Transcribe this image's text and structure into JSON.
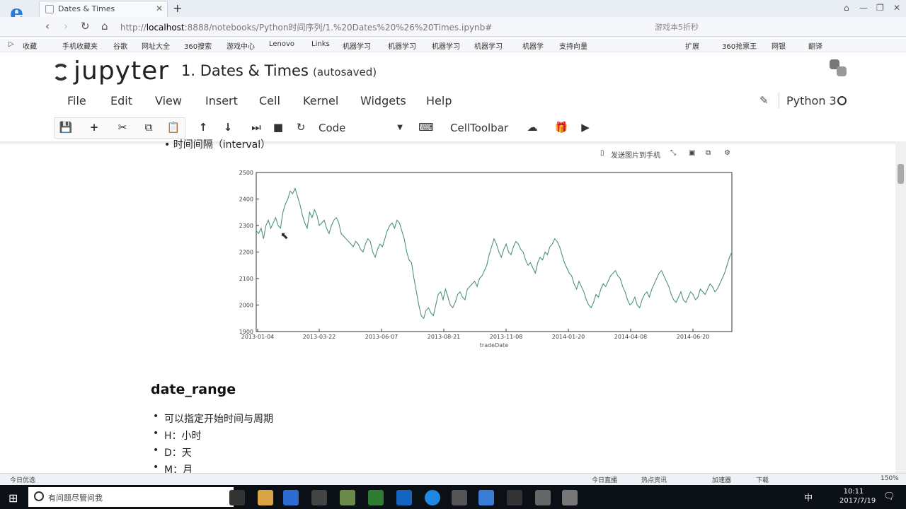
{
  "browser": {
    "tab_title": "Dates & Times",
    "url_prefix": "http://",
    "url_host": "localhost",
    "url_rest": ":8888/notebooks/Python时间序列/1.%20Dates%20%26%20Times.ipynb#",
    "search_hint": "游戏本5折秒",
    "bookmarks": [
      "收藏",
      "手机收藏夹",
      "谷歌",
      "网址大全",
      "360搜索",
      "游戏中心",
      "Lenovo",
      "Links",
      "机器学习",
      "机器学习",
      "机器学习",
      "机器学习",
      "机器学",
      "支持向量"
    ],
    "bookmarks_right": [
      "扩展",
      "360抢票王",
      "网银",
      "翻译"
    ]
  },
  "jupyter": {
    "logo_text": "jupyter",
    "notebook_title": "1. Dates & Times",
    "save_status": "(autosaved)",
    "menu": [
      "File",
      "Edit",
      "View",
      "Insert",
      "Cell",
      "Kernel",
      "Widgets",
      "Help"
    ],
    "kernel_name": "Python 3",
    "cell_type": "Code",
    "cell_toolbar_label": "CellToolbar"
  },
  "content": {
    "interval_line": "时间间隔（interval）",
    "chart_tools_send": "发送图片到手机",
    "heading": "date_range",
    "bullets": [
      "可以指定开始时间与周期",
      "H：小时",
      "D：天",
      "M：月"
    ]
  },
  "chart_data": {
    "type": "line",
    "xlabel": "tradeDate",
    "ylabel": "",
    "ylim": [
      1900,
      2500
    ],
    "yticks": [
      1900,
      2000,
      2100,
      2200,
      2300,
      2400,
      2500
    ],
    "xticks": [
      "2013-01-04",
      "2013-03-22",
      "2013-06-07",
      "2013-08-21",
      "2013-11-08",
      "2014-01-20",
      "2014-04-08",
      "2014-06-20"
    ],
    "line_color": "#4e8f83",
    "series": [
      {
        "values": [
          2280,
          2270,
          2290,
          2250,
          2300,
          2320,
          2290,
          2310,
          2330,
          2300,
          2290,
          2350,
          2380,
          2400,
          2430,
          2420,
          2440,
          2410,
          2380,
          2340,
          2310,
          2290,
          2350,
          2330,
          2360,
          2340,
          2300,
          2310,
          2320,
          2290,
          2270,
          2300,
          2320,
          2330,
          2310,
          2270,
          2260,
          2250,
          2240,
          2230,
          2220,
          2240,
          2230,
          2210,
          2200,
          2230,
          2250,
          2240,
          2200,
          2180,
          2210,
          2230,
          2220,
          2250,
          2280,
          2300,
          2310,
          2290,
          2320,
          2310,
          2280,
          2250,
          2200,
          2170,
          2160,
          2100,
          2050,
          2000,
          1960,
          1950,
          1980,
          1990,
          1970,
          1960,
          2000,
          2040,
          2050,
          2020,
          2060,
          2030,
          2000,
          1990,
          2010,
          2040,
          2050,
          2030,
          2020,
          2060,
          2070,
          2080,
          2090,
          2070,
          2100,
          2110,
          2130,
          2150,
          2190,
          2220,
          2250,
          2230,
          2200,
          2180,
          2210,
          2230,
          2200,
          2190,
          2220,
          2240,
          2230,
          2210,
          2200,
          2170,
          2150,
          2160,
          2140,
          2120,
          2160,
          2180,
          2170,
          2200,
          2190,
          2220,
          2230,
          2250,
          2240,
          2220,
          2190,
          2160,
          2140,
          2120,
          2110,
          2080,
          2060,
          2090,
          2070,
          2050,
          2020,
          2000,
          1990,
          2010,
          2040,
          2030,
          2060,
          2080,
          2070,
          2090,
          2110,
          2120,
          2130,
          2110,
          2100,
          2070,
          2050,
          2020,
          2000,
          2010,
          2030,
          2000,
          1990,
          2020,
          2040,
          2050,
          2030,
          2060,
          2080,
          2100,
          2120,
          2130,
          2110,
          2090,
          2070,
          2040,
          2020,
          2010,
          2030,
          2050,
          2020,
          2010,
          2030,
          2050,
          2040,
          2020,
          2030,
          2060,
          2050,
          2040,
          2060,
          2080,
          2070,
          2050,
          2060,
          2080,
          2100,
          2120,
          2150,
          2180,
          2200
        ]
      }
    ]
  },
  "statusbar": {
    "left": "今日优选",
    "items": [
      "今日直播",
      "热点资讯",
      "加速器",
      "下载"
    ],
    "zoom": "150%"
  },
  "taskbar": {
    "search_placeholder": "有问题尽管问我",
    "ime": "中",
    "time": "10:11",
    "date": "2017/7/19"
  }
}
